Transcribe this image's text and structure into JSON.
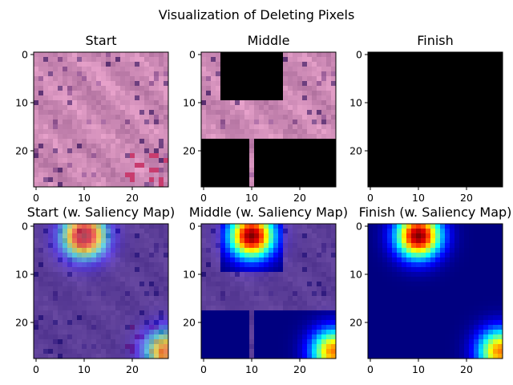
{
  "figure": {
    "suptitle": "Visualization of Deleting Pixels"
  },
  "chart_data": [
    {
      "type": "heatmap",
      "panel": "start",
      "title": "Start",
      "image": "pink tissue patch (H&E stain)",
      "overlay": "none",
      "xlim": [
        0,
        28
      ],
      "ylim": [
        28,
        0
      ],
      "xticks": [
        0,
        10,
        20
      ],
      "yticks": [
        0,
        10,
        20
      ],
      "deleted_regions": []
    },
    {
      "type": "heatmap",
      "panel": "middle",
      "title": "Middle",
      "image": "pink tissue patch (H&E stain)",
      "overlay": "none",
      "xlim": [
        0,
        28
      ],
      "ylim": [
        28,
        0
      ],
      "xticks": [
        0,
        10,
        20
      ],
      "yticks": [
        0,
        10,
        20
      ],
      "deleted_regions": [
        {
          "x0": 4,
          "x1": 17,
          "y0": 0,
          "y1": 10
        },
        {
          "x0": 0,
          "x1": 10,
          "y0": 18,
          "y1": 28
        },
        {
          "x0": 11,
          "x1": 28,
          "y0": 18,
          "y1": 28
        }
      ]
    },
    {
      "type": "heatmap",
      "panel": "finish",
      "title": "Finish",
      "image": "pink tissue patch (H&E stain)",
      "overlay": "none",
      "xlim": [
        0,
        28
      ],
      "ylim": [
        28,
        0
      ],
      "xticks": [
        0,
        10,
        20
      ],
      "yticks": [
        0,
        10,
        20
      ],
      "deleted_regions": [
        {
          "x0": 0,
          "x1": 28,
          "y0": 0,
          "y1": 28
        }
      ]
    },
    {
      "type": "heatmap",
      "panel": "start-saliency",
      "title": "Start (w. Saliency Map)",
      "image": "pink tissue patch (H&E stain)",
      "overlay": "jet saliency, semi-transparent",
      "xlim": [
        0,
        28
      ],
      "ylim": [
        28,
        0
      ],
      "xticks": [
        0,
        10,
        20
      ],
      "yticks": [
        0,
        10,
        20
      ],
      "hotspots": [
        {
          "x": 10,
          "y": 2,
          "peak": 1.0
        },
        {
          "x": 27,
          "y": 26,
          "peak": 0.75
        }
      ],
      "deleted_regions": []
    },
    {
      "type": "heatmap",
      "panel": "middle-saliency",
      "title": "Middle (w. Saliency Map)",
      "image": "pink tissue patch (H&E stain)",
      "overlay": "jet saliency, opaque where deleted",
      "xlim": [
        0,
        28
      ],
      "ylim": [
        28,
        0
      ],
      "xticks": [
        0,
        10,
        20
      ],
      "yticks": [
        0,
        10,
        20
      ],
      "hotspots": [
        {
          "x": 10,
          "y": 2,
          "peak": 1.0
        },
        {
          "x": 27,
          "y": 26,
          "peak": 0.75
        }
      ],
      "deleted_regions": [
        {
          "x0": 4,
          "x1": 17,
          "y0": 0,
          "y1": 10
        },
        {
          "x0": 0,
          "x1": 10,
          "y0": 18,
          "y1": 28
        },
        {
          "x0": 11,
          "x1": 28,
          "y0": 18,
          "y1": 28
        }
      ]
    },
    {
      "type": "heatmap",
      "panel": "finish-saliency",
      "title": "Finish (w. Saliency Map)",
      "image": "pink tissue patch (H&E stain)",
      "overlay": "jet saliency, opaque where deleted",
      "xlim": [
        0,
        28
      ],
      "ylim": [
        28,
        0
      ],
      "xticks": [
        0,
        10,
        20
      ],
      "yticks": [
        0,
        10,
        20
      ],
      "hotspots": [
        {
          "x": 10,
          "y": 2,
          "peak": 1.0
        },
        {
          "x": 27,
          "y": 26,
          "peak": 0.75
        }
      ],
      "deleted_regions": [
        {
          "x0": 0,
          "x1": 28,
          "y0": 0,
          "y1": 28
        }
      ]
    }
  ]
}
